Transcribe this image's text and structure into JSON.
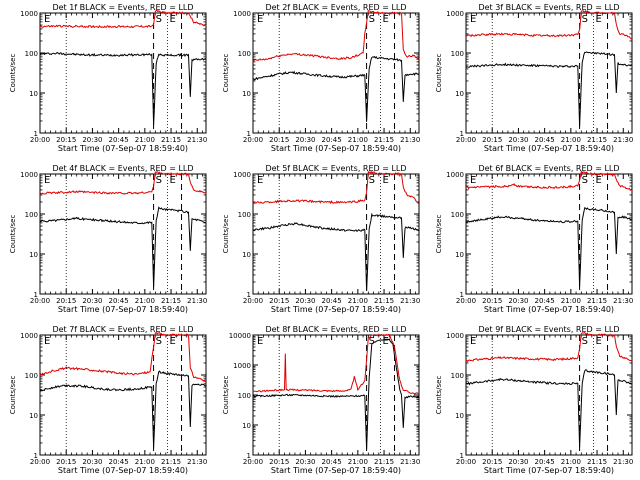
{
  "figure": {
    "xlabel": "Start Time (07-Sep-07 18:59:40)",
    "ylabel": "Counts/sec",
    "x_ticks": [
      "20:00",
      "20:15",
      "20:30",
      "20:45",
      "21:00",
      "21:15",
      "21:30"
    ],
    "legend_black": "Events",
    "legend_red": "LLD",
    "markers": [
      "E",
      "S",
      "E"
    ]
  },
  "colors": {
    "events": "#000000",
    "lld": "#e00000"
  },
  "chart_data": [
    {
      "type": "line",
      "title": "Det 1f BLACK = Events, RED = LLD",
      "xlabel": "Start Time (07-Sep-07 18:59:40)",
      "ylabel": "Counts/sec",
      "yscale": "log",
      "ylim": [
        1,
        1000
      ],
      "y_ticks": [
        "1",
        "10",
        "100",
        "1000"
      ],
      "xlim_min": [
        0,
        95
      ],
      "series": [
        {
          "name": "Events",
          "x": [
            0,
            10,
            25,
            40,
            55,
            64,
            65,
            66.5,
            68,
            70,
            72,
            80,
            85,
            86,
            87,
            90,
            95
          ],
          "values": [
            95,
            98,
            90,
            88,
            90,
            92,
            1.5,
            55,
            95,
            90,
            88,
            88,
            90,
            8,
            65,
            70,
            70
          ]
        },
        {
          "name": "LLD",
          "x": [
            0,
            10,
            25,
            40,
            55,
            64,
            65,
            66,
            68,
            72,
            80,
            85,
            86,
            88,
            90,
            95
          ],
          "values": [
            460,
            470,
            460,
            455,
            460,
            465,
            520,
            1100,
            1100,
            1000,
            1000,
            1000,
            800,
            600,
            560,
            480
          ]
        }
      ],
      "vlines_dotted": [
        15,
        73
      ],
      "vlines_dashed": [
        65,
        81
      ]
    },
    {
      "type": "line",
      "title": "Det 2f BLACK = Events, RED = LLD",
      "xlabel": "Start Time (07-Sep-07 18:59:40)",
      "ylabel": "Counts/sec",
      "yscale": "log",
      "ylim": [
        1,
        1000
      ],
      "y_ticks": [
        "1",
        "10",
        "100",
        "1000"
      ],
      "xlim_min": [
        0,
        95
      ],
      "series": [
        {
          "name": "Events",
          "x": [
            0,
            8,
            15,
            22,
            30,
            40,
            50,
            57,
            64,
            65,
            66.5,
            68,
            72,
            80,
            85,
            86,
            87,
            90,
            95
          ],
          "values": [
            22,
            26,
            30,
            33,
            30,
            27,
            25,
            26,
            28,
            2,
            40,
            80,
            75,
            70,
            65,
            6,
            28,
            30,
            30
          ]
        },
        {
          "name": "LLD",
          "x": [
            0,
            8,
            15,
            22,
            30,
            40,
            50,
            57,
            63,
            64,
            66,
            68,
            72,
            80,
            85,
            86,
            88,
            92,
            95
          ],
          "values": [
            65,
            70,
            85,
            95,
            90,
            80,
            72,
            78,
            100,
            300,
            1100,
            1100,
            1000,
            1000,
            1000,
            120,
            80,
            85,
            70
          ]
        }
      ],
      "vlines_dotted": [
        15,
        73
      ],
      "vlines_dashed": [
        65,
        81
      ]
    },
    {
      "type": "line",
      "title": "Det 3f BLACK = Events, RED = LLD",
      "xlabel": "Start Time (07-Sep-07 18:59:40)",
      "ylabel": "Counts/sec",
      "yscale": "log",
      "ylim": [
        1,
        1000
      ],
      "y_ticks": [
        "1",
        "10",
        "100",
        "1000"
      ],
      "xlim_min": [
        0,
        95
      ],
      "series": [
        {
          "name": "Events",
          "x": [
            0,
            10,
            20,
            30,
            40,
            50,
            57,
            64,
            65,
            66.5,
            68,
            72,
            80,
            85,
            86,
            87,
            90,
            95
          ],
          "values": [
            45,
            48,
            52,
            50,
            48,
            47,
            46,
            47,
            1.5,
            60,
            110,
            100,
            95,
            90,
            10,
            55,
            50,
            48
          ]
        },
        {
          "name": "LLD",
          "x": [
            0,
            10,
            20,
            30,
            40,
            50,
            57,
            64,
            65,
            66,
            68,
            72,
            80,
            85,
            86,
            88,
            92,
            95
          ],
          "values": [
            270,
            285,
            300,
            290,
            275,
            270,
            275,
            290,
            380,
            1100,
            1100,
            1000,
            1000,
            1000,
            500,
            300,
            270,
            230
          ]
        }
      ],
      "vlines_dotted": [
        15,
        73
      ],
      "vlines_dashed": [
        65,
        81
      ]
    },
    {
      "type": "line",
      "title": "Det 4f BLACK = Events, RED = LLD",
      "xlabel": "Start Time (07-Sep-07 18:59:40)",
      "ylabel": "Counts/sec",
      "yscale": "log",
      "ylim": [
        1,
        1000
      ],
      "y_ticks": [
        "1",
        "10",
        "100",
        "1000"
      ],
      "xlim_min": [
        0,
        95
      ],
      "series": [
        {
          "name": "Events",
          "x": [
            0,
            10,
            20,
            30,
            40,
            50,
            57,
            64,
            65,
            66.5,
            68,
            72,
            80,
            85,
            86,
            87,
            90,
            95
          ],
          "values": [
            65,
            70,
            78,
            72,
            66,
            62,
            60,
            62,
            1.5,
            70,
            140,
            130,
            120,
            110,
            12,
            75,
            72,
            60
          ]
        },
        {
          "name": "LLD",
          "x": [
            0,
            10,
            20,
            30,
            40,
            50,
            57,
            64,
            65,
            66,
            68,
            72,
            80,
            85,
            86,
            88,
            92,
            95
          ],
          "values": [
            330,
            340,
            360,
            345,
            335,
            330,
            335,
            360,
            500,
            1100,
            1100,
            1000,
            1000,
            1000,
            600,
            400,
            370,
            330
          ]
        }
      ],
      "vlines_dotted": [
        15,
        73
      ],
      "vlines_dashed": [
        65,
        81
      ]
    },
    {
      "type": "line",
      "title": "Det 5f BLACK = Events, RED = LLD",
      "xlabel": "Start Time (07-Sep-07 18:59:40)",
      "ylabel": "Counts/sec",
      "yscale": "log",
      "ylim": [
        1,
        1000
      ],
      "y_ticks": [
        "1",
        "10",
        "100",
        "1000"
      ],
      "xlim_min": [
        0,
        95
      ],
      "series": [
        {
          "name": "Events",
          "x": [
            0,
            10,
            20,
            25,
            30,
            40,
            50,
            57,
            64,
            65,
            66.5,
            68,
            72,
            80,
            85,
            86,
            87,
            90,
            95
          ],
          "values": [
            40,
            45,
            55,
            58,
            52,
            44,
            40,
            38,
            40,
            1.2,
            40,
            95,
            90,
            85,
            80,
            8,
            45,
            45,
            40
          ]
        },
        {
          "name": "LLD",
          "x": [
            0,
            10,
            20,
            30,
            40,
            50,
            57,
            64,
            65,
            66,
            68,
            72,
            80,
            85,
            86,
            88,
            92,
            95
          ],
          "values": [
            190,
            200,
            215,
            210,
            200,
            195,
            200,
            220,
            350,
            1100,
            1100,
            1000,
            1000,
            1000,
            450,
            300,
            250,
            180
          ]
        }
      ],
      "vlines_dotted": [
        15,
        73
      ],
      "vlines_dashed": [
        65,
        81
      ]
    },
    {
      "type": "line",
      "title": "Det 6f BLACK = Events, RED = LLD",
      "xlabel": "Start Time (07-Sep-07 18:59:40)",
      "ylabel": "Counts/sec",
      "yscale": "log",
      "ylim": [
        1,
        1000
      ],
      "y_ticks": [
        "1",
        "10",
        "100",
        "1000"
      ],
      "xlim_min": [
        0,
        95
      ],
      "series": [
        {
          "name": "Events",
          "x": [
            0,
            10,
            20,
            30,
            40,
            50,
            57,
            64,
            65,
            66.5,
            68,
            72,
            80,
            85,
            86,
            87,
            90,
            95
          ],
          "values": [
            65,
            72,
            85,
            78,
            70,
            66,
            64,
            66,
            1.5,
            70,
            140,
            130,
            120,
            110,
            10,
            80,
            85,
            70
          ]
        },
        {
          "name": "LLD",
          "x": [
            0,
            10,
            20,
            25,
            27,
            30,
            40,
            50,
            57,
            64,
            65,
            66,
            68,
            72,
            80,
            85,
            86,
            88,
            92,
            95
          ],
          "values": [
            450,
            470,
            490,
            500,
            560,
            490,
            470,
            460,
            470,
            500,
            700,
            1100,
            1100,
            1000,
            1000,
            1000,
            700,
            500,
            450,
            380
          ]
        }
      ],
      "vlines_dotted": [
        15,
        73
      ],
      "vlines_dashed": [
        65,
        81
      ]
    },
    {
      "type": "line",
      "title": "Det 7f BLACK = Events, RED = LLD",
      "xlabel": "Start Time (07-Sep-07 18:59:40)",
      "ylabel": "Counts/sec",
      "yscale": "log",
      "ylim": [
        1,
        1000
      ],
      "y_ticks": [
        "1",
        "10",
        "100",
        "1000"
      ],
      "xlim_min": [
        0,
        95
      ],
      "series": [
        {
          "name": "Events",
          "x": [
            0,
            8,
            15,
            25,
            35,
            45,
            55,
            64,
            65,
            66.5,
            68,
            72,
            80,
            85,
            86,
            87,
            90,
            95
          ],
          "values": [
            40,
            50,
            55,
            52,
            45,
            42,
            45,
            50,
            1.5,
            60,
            120,
            110,
            100,
            95,
            5,
            55,
            60,
            55
          ]
        },
        {
          "name": "LLD",
          "x": [
            0,
            8,
            15,
            25,
            35,
            45,
            55,
            63,
            64,
            66,
            68,
            72,
            80,
            85,
            86,
            88,
            92,
            95
          ],
          "values": [
            100,
            130,
            150,
            140,
            125,
            110,
            105,
            120,
            250,
            1100,
            1100,
            1000,
            1000,
            1000,
            150,
            90,
            80,
            65
          ]
        }
      ],
      "vlines_dotted": [
        15,
        73
      ],
      "vlines_dashed": [
        65,
        81
      ]
    },
    {
      "type": "line",
      "title": "Det 8f BLACK = Events, RED = LLD",
      "xlabel": "Start Time (07-Sep-07 18:59:40)",
      "ylabel": "Counts/sec",
      "yscale": "log",
      "ylim": [
        1,
        10000
      ],
      "y_ticks": [
        "1",
        "10",
        "100",
        "1000",
        "10000"
      ],
      "xlim_min": [
        0,
        95
      ],
      "series": [
        {
          "name": "Events",
          "x": [
            0,
            10,
            20,
            30,
            40,
            50,
            57,
            64,
            65,
            66.5,
            68,
            72,
            78,
            80,
            84,
            85,
            86,
            87,
            90,
            95
          ],
          "values": [
            90,
            95,
            100,
            98,
            92,
            90,
            92,
            95,
            1.5,
            400,
            5000,
            7000,
            7000,
            5000,
            150,
            100,
            8,
            80,
            90,
            85
          ]
        },
        {
          "name": "LLD",
          "x": [
            0,
            10,
            18,
            18.5,
            19,
            30,
            40,
            50,
            56,
            58,
            60,
            64,
            66,
            68,
            72,
            78,
            81,
            84,
            86,
            90,
            95
          ],
          "values": [
            130,
            140,
            150,
            2400,
            150,
            145,
            140,
            135,
            150,
            400,
            150,
            300,
            8000,
            10000,
            10000,
            10000,
            4000,
            300,
            150,
            120,
            110
          ]
        }
      ],
      "vlines_dotted": [
        15,
        73
      ],
      "vlines_dashed": [
        65,
        81
      ]
    },
    {
      "type": "line",
      "title": "Det 9f BLACK = Events, RED = LLD",
      "xlabel": "Start Time (07-Sep-07 18:59:40)",
      "ylabel": "Counts/sec",
      "yscale": "log",
      "ylim": [
        1,
        1000
      ],
      "y_ticks": [
        "1",
        "10",
        "100",
        "1000"
      ],
      "xlim_min": [
        0,
        95
      ],
      "series": [
        {
          "name": "Events",
          "x": [
            0,
            10,
            20,
            30,
            40,
            50,
            57,
            64,
            65,
            66.5,
            68,
            72,
            80,
            85,
            86,
            87,
            90,
            95
          ],
          "values": [
            60,
            68,
            78,
            72,
            66,
            62,
            60,
            62,
            1.5,
            60,
            130,
            120,
            110,
            100,
            10,
            75,
            72,
            60
          ]
        },
        {
          "name": "LLD",
          "x": [
            0,
            10,
            20,
            30,
            40,
            50,
            57,
            64,
            65,
            66,
            68,
            72,
            80,
            85,
            86,
            88,
            92,
            95
          ],
          "values": [
            230,
            250,
            270,
            260,
            250,
            245,
            250,
            270,
            450,
            1100,
            1100,
            1000,
            1000,
            1000,
            500,
            300,
            260,
            220
          ]
        }
      ],
      "vlines_dotted": [
        15,
        73
      ],
      "vlines_dashed": [
        65,
        81
      ]
    }
  ]
}
